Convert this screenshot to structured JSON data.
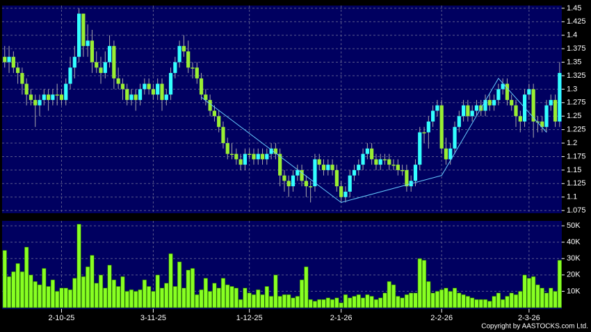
{
  "chart_data": {
    "type": "candlestick",
    "colors": {
      "background": "#000000",
      "panel": "#000060",
      "grid": "#5a5a8c",
      "up": "#33ffff",
      "down": "#99ee33",
      "volume": "#88ff22",
      "trend": "#66ccff"
    },
    "categories": [
      null,
      null,
      null,
      null,
      null,
      null,
      null,
      null,
      null,
      null,
      null,
      null,
      null,
      "2-10-25",
      null,
      null,
      null,
      null,
      null,
      null,
      null,
      null,
      null,
      null,
      null,
      null,
      null,
      null,
      null,
      null,
      null,
      null,
      null,
      null,
      "3-11-25",
      null,
      null,
      null,
      null,
      null,
      null,
      null,
      null,
      null,
      null,
      null,
      null,
      null,
      null,
      null,
      null,
      null,
      null,
      null,
      null,
      null,
      "1-12-25",
      null,
      null,
      null,
      null,
      null,
      null,
      null,
      null,
      null,
      null,
      null,
      null,
      null,
      null,
      null,
      null,
      null,
      null,
      null,
      null,
      "2-1-26",
      null,
      null,
      null,
      null,
      null,
      null,
      null,
      null,
      null,
      null,
      null,
      null,
      null,
      null,
      null,
      null,
      null,
      null,
      null,
      null,
      null,
      null,
      "2-2-26",
      null,
      null,
      null,
      null,
      null,
      null,
      null,
      null,
      null,
      null,
      null,
      null,
      null,
      null,
      null,
      null,
      null,
      null,
      null,
      "2-3-26",
      null,
      null,
      null,
      null,
      null,
      null,
      null
    ],
    "open": [
      1.36,
      1.35,
      1.36,
      1.34,
      1.33,
      1.31,
      1.29,
      1.28,
      1.27,
      1.28,
      1.29,
      1.28,
      1.29,
      1.29,
      1.28,
      1.31,
      1.34,
      1.36,
      1.44,
      1.38,
      1.39,
      1.35,
      1.34,
      1.33,
      1.35,
      1.38,
      1.32,
      1.31,
      1.3,
      1.28,
      1.29,
      1.28,
      1.3,
      1.31,
      1.3,
      1.29,
      1.31,
      1.28,
      1.29,
      1.33,
      1.35,
      1.38,
      1.37,
      1.34,
      1.34,
      1.32,
      1.29,
      1.28,
      1.26,
      1.25,
      1.23,
      1.2,
      1.18,
      1.18,
      1.17,
      1.16,
      1.18,
      1.18,
      1.17,
      1.18,
      1.17,
      1.18,
      1.19,
      1.18,
      1.14,
      1.13,
      1.12,
      1.14,
      1.15,
      1.13,
      1.12,
      1.12,
      1.17,
      1.16,
      1.15,
      1.16,
      1.15,
      1.12,
      1.1,
      1.11,
      1.14,
      1.15,
      1.16,
      1.18,
      1.19,
      1.17,
      1.16,
      1.17,
      1.17,
      1.16,
      1.16,
      1.15,
      1.15,
      1.12,
      1.13,
      1.16,
      1.22,
      1.22,
      1.24,
      1.26,
      1.27,
      1.19,
      1.17,
      1.19,
      1.23,
      1.25,
      1.27,
      1.25,
      1.26,
      1.27,
      1.26,
      1.28,
      1.27,
      1.28,
      1.3,
      1.31,
      1.28,
      1.27,
      1.25,
      1.24,
      1.29,
      1.3,
      1.24,
      1.24,
      1.23,
      1.27,
      1.28,
      1.24
    ],
    "high": [
      1.38,
      1.38,
      1.37,
      1.35,
      1.34,
      1.32,
      1.3,
      1.29,
      1.29,
      1.3,
      1.3,
      1.3,
      1.31,
      1.3,
      1.32,
      1.36,
      1.38,
      1.45,
      1.44,
      1.42,
      1.41,
      1.37,
      1.36,
      1.37,
      1.4,
      1.39,
      1.34,
      1.32,
      1.31,
      1.3,
      1.3,
      1.31,
      1.32,
      1.32,
      1.31,
      1.32,
      1.32,
      1.3,
      1.34,
      1.36,
      1.39,
      1.4,
      1.39,
      1.35,
      1.35,
      1.33,
      1.3,
      1.29,
      1.27,
      1.26,
      1.24,
      1.21,
      1.2,
      1.19,
      1.18,
      1.19,
      1.19,
      1.19,
      1.19,
      1.19,
      1.19,
      1.2,
      1.2,
      1.19,
      1.15,
      1.14,
      1.15,
      1.16,
      1.16,
      1.14,
      1.13,
      1.18,
      1.18,
      1.17,
      1.17,
      1.17,
      1.16,
      1.13,
      1.12,
      1.15,
      1.16,
      1.17,
      1.19,
      1.2,
      1.2,
      1.18,
      1.18,
      1.18,
      1.18,
      1.17,
      1.17,
      1.16,
      1.16,
      1.14,
      1.17,
      1.23,
      1.23,
      1.25,
      1.27,
      1.28,
      1.28,
      1.21,
      1.2,
      1.24,
      1.26,
      1.28,
      1.28,
      1.27,
      1.28,
      1.28,
      1.29,
      1.29,
      1.29,
      1.31,
      1.32,
      1.32,
      1.29,
      1.28,
      1.26,
      1.3,
      1.31,
      1.31,
      1.25,
      1.25,
      1.28,
      1.29,
      1.29,
      1.35
    ],
    "low": [
      1.34,
      1.33,
      1.33,
      1.31,
      1.29,
      1.27,
      1.27,
      1.23,
      1.25,
      1.27,
      1.26,
      1.27,
      1.27,
      1.27,
      1.27,
      1.3,
      1.32,
      1.35,
      1.36,
      1.36,
      1.33,
      1.33,
      1.31,
      1.32,
      1.34,
      1.3,
      1.3,
      1.28,
      1.27,
      1.27,
      1.26,
      1.27,
      1.29,
      1.29,
      1.28,
      1.28,
      1.26,
      1.27,
      1.28,
      1.32,
      1.34,
      1.36,
      1.33,
      1.32,
      1.31,
      1.28,
      1.27,
      1.25,
      1.24,
      1.22,
      1.19,
      1.17,
      1.17,
      1.16,
      1.15,
      1.15,
      1.17,
      1.16,
      1.16,
      1.16,
      1.16,
      1.17,
      1.17,
      1.12,
      1.11,
      1.1,
      1.11,
      1.13,
      1.12,
      1.1,
      1.09,
      1.11,
      1.15,
      1.14,
      1.14,
      1.14,
      1.11,
      1.09,
      1.09,
      1.1,
      1.13,
      1.14,
      1.15,
      1.17,
      1.16,
      1.15,
      1.15,
      1.16,
      1.15,
      1.15,
      1.14,
      1.14,
      1.11,
      1.11,
      1.12,
      1.15,
      1.2,
      1.19,
      1.23,
      1.25,
      1.18,
      1.16,
      1.16,
      1.18,
      1.22,
      1.24,
      1.24,
      1.24,
      1.25,
      1.25,
      1.25,
      1.26,
      1.26,
      1.27,
      1.29,
      1.27,
      1.26,
      1.23,
      1.22,
      1.23,
      1.28,
      1.21,
      1.22,
      1.22,
      1.22,
      1.26,
      1.23,
      1.23
    ],
    "close": [
      1.35,
      1.36,
      1.34,
      1.33,
      1.31,
      1.29,
      1.28,
      1.27,
      1.28,
      1.29,
      1.28,
      1.29,
      1.29,
      1.28,
      1.31,
      1.34,
      1.36,
      1.44,
      1.38,
      1.39,
      1.35,
      1.34,
      1.33,
      1.35,
      1.38,
      1.32,
      1.31,
      1.3,
      1.28,
      1.29,
      1.28,
      1.3,
      1.31,
      1.3,
      1.29,
      1.31,
      1.28,
      1.29,
      1.33,
      1.35,
      1.38,
      1.37,
      1.34,
      1.34,
      1.32,
      1.29,
      1.28,
      1.26,
      1.25,
      1.23,
      1.2,
      1.18,
      1.18,
      1.17,
      1.16,
      1.18,
      1.18,
      1.17,
      1.18,
      1.17,
      1.18,
      1.19,
      1.18,
      1.14,
      1.13,
      1.12,
      1.14,
      1.15,
      1.13,
      1.12,
      1.12,
      1.17,
      1.16,
      1.15,
      1.16,
      1.15,
      1.12,
      1.1,
      1.11,
      1.14,
      1.15,
      1.16,
      1.18,
      1.19,
      1.17,
      1.16,
      1.17,
      1.17,
      1.16,
      1.16,
      1.15,
      1.15,
      1.12,
      1.13,
      1.16,
      1.22,
      1.22,
      1.24,
      1.26,
      1.27,
      1.19,
      1.17,
      1.19,
      1.23,
      1.25,
      1.27,
      1.25,
      1.26,
      1.27,
      1.26,
      1.28,
      1.27,
      1.28,
      1.3,
      1.31,
      1.28,
      1.27,
      1.25,
      1.24,
      1.29,
      1.3,
      1.24,
      1.24,
      1.23,
      1.27,
      1.28,
      1.24,
      1.33
    ],
    "volume": [
      35000,
      19000,
      22000,
      27000,
      22000,
      37000,
      20000,
      16000,
      14000,
      24000,
      13000,
      17000,
      10000,
      12000,
      12000,
      11000,
      18000,
      51000,
      19000,
      25000,
      32000,
      15000,
      20000,
      12000,
      26000,
      17000,
      13000,
      19000,
      10000,
      11000,
      10000,
      11000,
      17000,
      13000,
      10000,
      20000,
      12000,
      15000,
      33000,
      13000,
      28000,
      12000,
      23000,
      24000,
      8000,
      11000,
      18000,
      10000,
      15000,
      12000,
      18000,
      14000,
      13000,
      12000,
      5000,
      12000,
      9000,
      8000,
      11000,
      8000,
      13000,
      7000,
      20000,
      7000,
      8000,
      8000,
      6000,
      7000,
      17000,
      25000,
      5000,
      4000,
      5000,
      5000,
      6000,
      5000,
      6000,
      3000,
      8000,
      6000,
      7000,
      8000,
      6000,
      8000,
      7000,
      5000,
      6000,
      9000,
      16000,
      14000,
      7000,
      6000,
      8000,
      9000,
      9000,
      30000,
      29000,
      16000,
      9000,
      10000,
      11000,
      12000,
      10000,
      12000,
      9000,
      8000,
      7000,
      6000,
      5000,
      5000,
      5000,
      4000,
      7000,
      9000,
      5000,
      7000,
      9000,
      8000,
      10000,
      20000,
      18000,
      19000,
      14000,
      12000,
      9000,
      12000,
      10000,
      29000
    ],
    "trend_line": {
      "x": [
        45,
        77,
        100,
        113,
        124
      ],
      "values": [
        1.285,
        1.09,
        1.14,
        1.32,
        1.22
      ]
    },
    "xlim": [
      -0.6,
      127.5
    ],
    "ylim": [
      1.07,
      1.455
    ],
    "yticks": [
      1.075,
      1.1,
      1.125,
      1.15,
      1.175,
      1.2,
      1.225,
      1.25,
      1.275,
      1.3,
      1.325,
      1.35,
      1.375,
      1.4,
      1.425,
      1.45
    ],
    "vlim": [
      0,
      53000
    ],
    "vticks": [
      {
        "value": 10000,
        "label": "10K"
      },
      {
        "value": 20000,
        "label": "20K"
      },
      {
        "value": 30000,
        "label": "30K"
      },
      {
        "value": 40000,
        "label": "40K"
      },
      {
        "value": 50000,
        "label": "50K"
      }
    ],
    "grid": true,
    "copyright": "Copyright by AASTOCKS.com Ltd."
  }
}
